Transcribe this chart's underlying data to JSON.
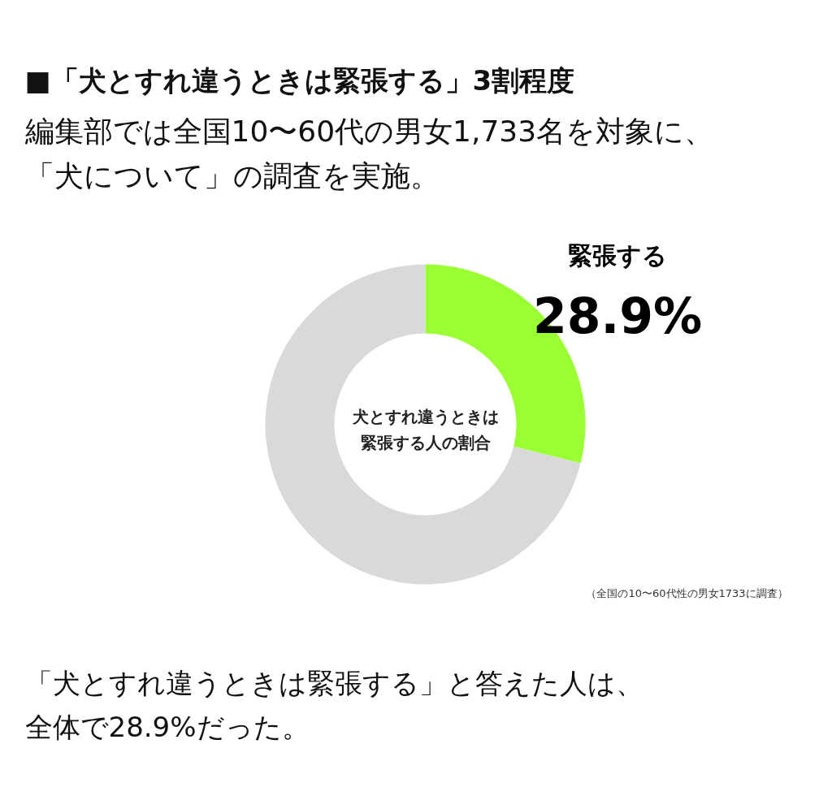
{
  "chart_data": {
    "type": "donut",
    "title": "■「犬とすれ違うときは緊張する」3割程度",
    "subtitle": "編集部では全国10〜60代の男女1,733名を対象に、「犬について」の調査を実施。",
    "categories": [
      "緊張する",
      null
    ],
    "values": [
      28.9,
      71.1
    ],
    "colors": [
      "#99ff33",
      "#d9d9d9"
    ],
    "value_labels": [
      "28.9%",
      null
    ],
    "annotations": [
      "犬とすれ違うときは緊張する人の割合",
      "（全国の10〜60代性の男女1733に調査）",
      "「犬とすれ違うときは緊張する」と答えた人は、全体で28.9%だった。"
    ]
  }
}
